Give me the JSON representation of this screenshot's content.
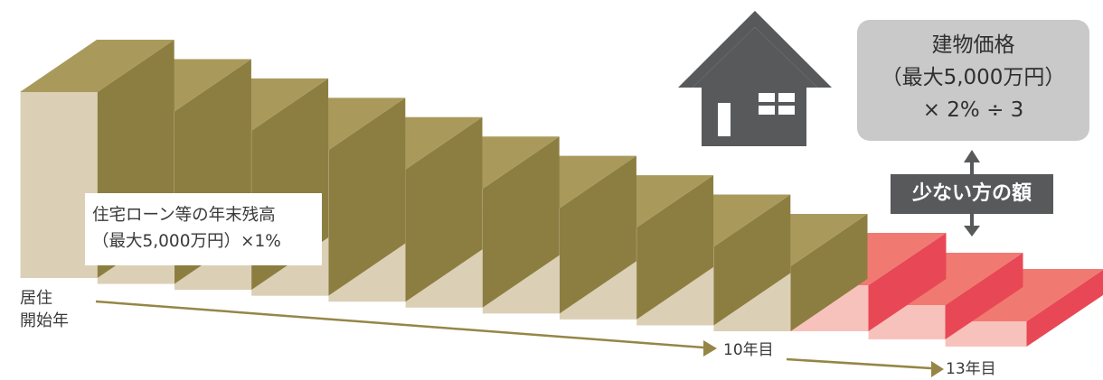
{
  "labels": {
    "loan_line1": "住宅ローン等の年末残高",
    "loan_line2": "（最大5,000万円）×1%",
    "start_line1": "居住",
    "start_line2": "開始年",
    "year10": "10年目",
    "year13": "13年目",
    "price_line1": "建物価格",
    "price_line2": "（最大5,000万円）",
    "price_line3": "× 2% ÷ 3",
    "lesser_amount": "少ない方の額"
  },
  "steps": {
    "count": 13,
    "count_first_phase": 10,
    "count_second_phase": 3
  },
  "colors": {
    "step_front_phase1": "#dbcfb6",
    "step_top_phase1": "#a99a5c",
    "step_side_phase1": "#8c7e40",
    "step_front_phase2": "#f8c2bc",
    "step_top_phase2": "#f07a72",
    "step_side_phase2": "#e84855",
    "arrow": "#968646",
    "house": "#58595b",
    "price_box": "#c9c9ca",
    "lesser_box": "#58595b"
  },
  "icons": {
    "house": "house-icon",
    "double_arrow": "up-down-arrow-icon",
    "timeline_arrow": "right-arrow-icon"
  }
}
